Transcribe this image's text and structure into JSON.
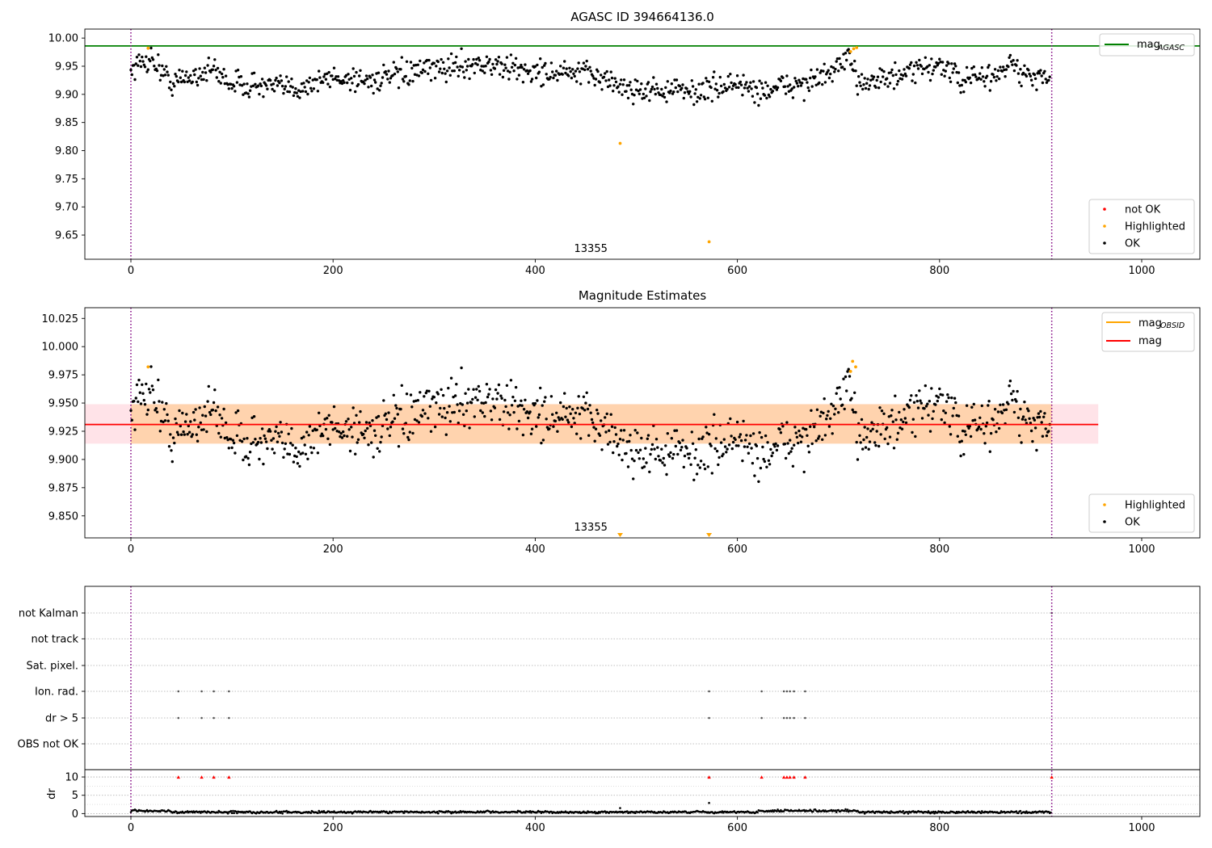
{
  "chart_data": [
    {
      "type": "scatter",
      "title": "AGASC ID 394664136.0",
      "xlabel": "",
      "ylabel": "",
      "xlim": [
        -45,
        1055
      ],
      "ylim": [
        9.607,
        10.016
      ],
      "xticks": [
        0,
        200,
        400,
        600,
        800,
        1000
      ],
      "yticks": [
        9.65,
        9.7,
        9.75,
        9.8,
        9.85,
        9.9,
        9.95,
        10.0
      ],
      "grid": false,
      "n_points": 910,
      "ok_baseline": [
        [
          0,
          9.945
        ],
        [
          20,
          9.965
        ],
        [
          40,
          9.92
        ],
        [
          80,
          9.945
        ],
        [
          100,
          9.92
        ],
        [
          160,
          9.91
        ],
        [
          200,
          9.93
        ],
        [
          240,
          9.925
        ],
        [
          300,
          9.945
        ],
        [
          340,
          9.955
        ],
        [
          400,
          9.94
        ],
        [
          460,
          9.935
        ],
        [
          490,
          9.91
        ],
        [
          560,
          9.905
        ],
        [
          600,
          9.92
        ],
        [
          620,
          9.905
        ],
        [
          650,
          9.915
        ],
        [
          680,
          9.925
        ],
        [
          710,
          9.96
        ],
        [
          720,
          9.925
        ],
        [
          760,
          9.93
        ],
        [
          800,
          9.955
        ],
        [
          820,
          9.925
        ],
        [
          860,
          9.935
        ],
        [
          870,
          9.96
        ],
        [
          880,
          9.935
        ],
        [
          910,
          9.925
        ]
      ],
      "highlighted_points": [
        [
          17,
          9.982
        ],
        [
          484,
          9.813
        ],
        [
          572,
          9.638
        ],
        [
          712,
          9.976
        ],
        [
          715,
          9.981
        ],
        [
          718,
          9.983
        ]
      ],
      "hlines": [
        {
          "name": "mag$_{AGASC}$",
          "y": 9.986,
          "color": "#008000"
        }
      ],
      "vlines": [
        {
          "x": 0,
          "color": "#800080",
          "style": "dotted"
        },
        {
          "x": 911,
          "color": "#800080",
          "style": "dotted"
        }
      ],
      "annotation": {
        "x": 455,
        "y": 9.616,
        "text": "13355"
      },
      "legend_lines": {
        "placement": "top-right",
        "entries": [
          {
            "name": "mag$_{AGASC}$",
            "color": "#008000"
          }
        ]
      },
      "legend_points": {
        "placement": "bottom-right",
        "entries": [
          {
            "name": "not OK",
            "color": "#ff0000"
          },
          {
            "name": "Highlighted",
            "color": "#ffa500"
          },
          {
            "name": "OK",
            "color": "#000000"
          }
        ]
      }
    },
    {
      "type": "scatter",
      "title": "Magnitude Estimates",
      "xlabel": "",
      "ylabel": "",
      "xlim": [
        -45,
        1055
      ],
      "ylim": [
        9.8305,
        10.0345
      ],
      "xticks": [
        0,
        200,
        400,
        600,
        800,
        1000
      ],
      "yticks": [
        9.85,
        9.875,
        9.9,
        9.925,
        9.95,
        9.975,
        10.0,
        10.025
      ],
      "grid": false,
      "n_points": 910,
      "ok_baseline": [
        [
          0,
          9.945
        ],
        [
          20,
          9.965
        ],
        [
          40,
          9.92
        ],
        [
          80,
          9.945
        ],
        [
          100,
          9.92
        ],
        [
          160,
          9.91
        ],
        [
          200,
          9.93
        ],
        [
          240,
          9.925
        ],
        [
          300,
          9.945
        ],
        [
          340,
          9.955
        ],
        [
          400,
          9.94
        ],
        [
          460,
          9.935
        ],
        [
          490,
          9.91
        ],
        [
          560,
          9.905
        ],
        [
          600,
          9.92
        ],
        [
          620,
          9.905
        ],
        [
          650,
          9.915
        ],
        [
          680,
          9.925
        ],
        [
          710,
          9.96
        ],
        [
          720,
          9.925
        ],
        [
          760,
          9.93
        ],
        [
          800,
          9.955
        ],
        [
          820,
          9.925
        ],
        [
          860,
          9.935
        ],
        [
          870,
          9.96
        ],
        [
          880,
          9.935
        ],
        [
          910,
          9.925
        ]
      ],
      "highlighted_points": [
        [
          17,
          9.982
        ],
        [
          712,
          9.978
        ],
        [
          714,
          9.987
        ],
        [
          717,
          9.982
        ]
      ],
      "offscale_markers": [
        {
          "x": 484,
          "label": "▼"
        },
        {
          "x": 572,
          "label": "▼"
        }
      ],
      "mag_line": {
        "y": 9.931,
        "x_range": [
          -45,
          957
        ],
        "color": "#ff0000"
      },
      "mag_band": {
        "y_range": [
          9.914,
          9.949
        ],
        "x_range": [
          -45,
          957
        ],
        "color": "#ffc0cb"
      },
      "obsid_band": {
        "y_range": [
          9.914,
          9.949
        ],
        "x_range": [
          0,
          911
        ],
        "color": "#ffa500"
      },
      "vlines": [
        {
          "x": 0,
          "color": "#800080",
          "style": "dotted"
        },
        {
          "x": 911,
          "color": "#800080",
          "style": "dotted"
        }
      ],
      "annotation": {
        "x": 455,
        "y": 9.8355,
        "text": "13355"
      },
      "legend_lines": {
        "placement": "top-right",
        "entries": [
          {
            "name": "mag$_{OBSID}$",
            "color": "#ffa500"
          },
          {
            "name": "mag",
            "color": "#ff0000"
          }
        ]
      },
      "legend_points": {
        "placement": "bottom-right",
        "entries": [
          {
            "name": "Highlighted",
            "color": "#ffa500"
          },
          {
            "name": "OK",
            "color": "#000000"
          }
        ]
      }
    },
    {
      "type": "scatter",
      "title": "",
      "xlim": [
        -45,
        1055
      ],
      "xticks": [
        0,
        200,
        400,
        600,
        800,
        1000
      ],
      "flag_rows": [
        "not Kalman",
        "not track",
        "Sat. pixel.",
        "Ion. rad.",
        "dr > 5",
        "OBS not OK"
      ],
      "flag_events": {
        "Ion. rad.": [
          47,
          70,
          82,
          97,
          572,
          624,
          646,
          649,
          652,
          656,
          667
        ],
        "dr > 5": [
          47,
          70,
          82,
          97,
          572,
          624,
          646,
          649,
          652,
          656,
          667
        ],
        "not Kalman": [
          911
        ]
      },
      "dr_panel": {
        "ylabel": "dr",
        "ylim": [
          -0.8,
          12
        ],
        "yticks": [
          0,
          5,
          10
        ],
        "baseline": 0.4,
        "capped_at": 10,
        "capped_points": [
          47,
          70,
          82,
          97,
          572,
          624,
          646,
          649,
          652,
          656,
          667,
          911
        ],
        "spikes": [
          [
            484,
            1.5
          ],
          [
            572,
            2.9
          ]
        ]
      },
      "vlines": [
        {
          "x": 0,
          "color": "#800080",
          "style": "dotted"
        },
        {
          "x": 911,
          "color": "#800080",
          "style": "dotted"
        }
      ]
    }
  ],
  "texts": {
    "p1_title": "AGASC ID 394664136.0",
    "p2_title": "Magnitude Estimates",
    "annotation_obsid": "13355",
    "legend_agasc_base": "mag",
    "legend_agasc_sub": "AGASC",
    "legend_obsid_base": "mag",
    "legend_obsid_sub": "OBSID",
    "legend_mag": "mag",
    "legend_not_ok": "not OK",
    "legend_highlighted": "Highlighted",
    "legend_ok": "OK",
    "dr_label": "dr"
  }
}
